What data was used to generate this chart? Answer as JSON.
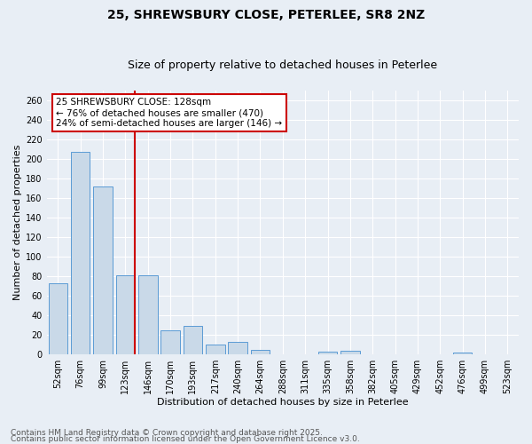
{
  "title1": "25, SHREWSBURY CLOSE, PETERLEE, SR8 2NZ",
  "title2": "Size of property relative to detached houses in Peterlee",
  "xlabel": "Distribution of detached houses by size in Peterlee",
  "ylabel": "Number of detached properties",
  "categories": [
    "52sqm",
    "76sqm",
    "99sqm",
    "123sqm",
    "146sqm",
    "170sqm",
    "193sqm",
    "217sqm",
    "240sqm",
    "264sqm",
    "288sqm",
    "311sqm",
    "335sqm",
    "358sqm",
    "382sqm",
    "405sqm",
    "429sqm",
    "452sqm",
    "476sqm",
    "499sqm",
    "523sqm"
  ],
  "values": [
    73,
    207,
    172,
    81,
    81,
    25,
    29,
    10,
    13,
    5,
    0,
    0,
    3,
    4,
    0,
    0,
    0,
    0,
    2,
    0,
    0
  ],
  "bar_color": "#c9d9e8",
  "bar_edge_color": "#5b9bd5",
  "highlight_index": 3,
  "highlight_line_color": "#cc0000",
  "annotation_line1": "25 SHREWSBURY CLOSE: 128sqm",
  "annotation_line2": "← 76% of detached houses are smaller (470)",
  "annotation_line3": "24% of semi-detached houses are larger (146) →",
  "annotation_box_color": "#cc0000",
  "ylim": [
    0,
    270
  ],
  "yticks": [
    0,
    20,
    40,
    60,
    80,
    100,
    120,
    140,
    160,
    180,
    200,
    220,
    240,
    260
  ],
  "footer1": "Contains HM Land Registry data © Crown copyright and database right 2025.",
  "footer2": "Contains public sector information licensed under the Open Government Licence v3.0.",
  "background_color": "#e8eef5",
  "plot_bg_color": "#e8eef5",
  "grid_color": "#ffffff",
  "title_fontsize": 10,
  "subtitle_fontsize": 9,
  "tick_fontsize": 7,
  "label_fontsize": 8,
  "footer_fontsize": 6.5,
  "annotation_fontsize": 7.5
}
